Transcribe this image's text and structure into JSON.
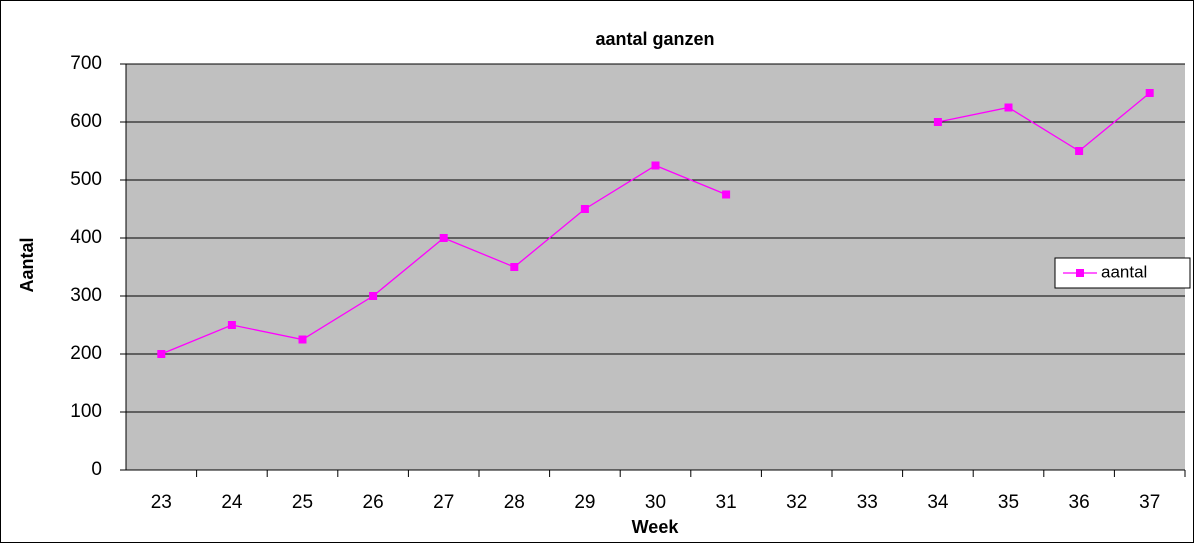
{
  "chart_data": {
    "type": "line",
    "title": "aantal ganzen",
    "x_label": "Week",
    "y_label": "Aantal",
    "categories": [
      "23",
      "24",
      "25",
      "26",
      "27",
      "28",
      "29",
      "30",
      "31",
      "32",
      "33",
      "34",
      "35",
      "36",
      "37"
    ],
    "series": [
      {
        "name": "aantal",
        "color": "#ff00ff",
        "values": [
          200,
          250,
          225,
          300,
          400,
          350,
          450,
          525,
          475,
          null,
          null,
          600,
          625,
          550,
          650
        ]
      }
    ],
    "ylim": [
      0,
      700
    ],
    "yticks": [
      0,
      100,
      200,
      300,
      400,
      500,
      600,
      700
    ],
    "grid": true,
    "legend": "right",
    "plot_background": "#c0c0c0"
  }
}
